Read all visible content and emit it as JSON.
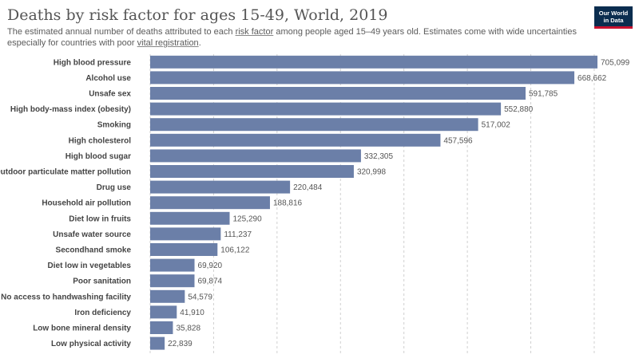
{
  "header": {
    "title": "Deaths by risk factor for ages 15-49, World, 2019",
    "subtitle_parts": [
      {
        "text": "The estimated annual number of deaths attributed to each ",
        "u": false
      },
      {
        "text": "risk factor",
        "u": true
      },
      {
        "text": " among people aged 15–49 years old. Estimates come with wide uncertainties especially for countries with poor ",
        "u": false
      },
      {
        "text": "vital registration",
        "u": true
      },
      {
        "text": ".",
        "u": false
      }
    ]
  },
  "logo": {
    "line1": "Our World",
    "line2": "in Data"
  },
  "colors": {
    "bar": "#6b7fa8",
    "grid": "#d0d0d0",
    "text": "#444444"
  },
  "chart_data": {
    "type": "bar",
    "orientation": "horizontal",
    "title": "Deaths by risk factor for ages 15-49, World, 2019",
    "xlim": [
      0,
      705099
    ],
    "gridlines_at": [
      0,
      100000,
      200000,
      300000,
      400000,
      500000,
      600000,
      700000
    ],
    "grid": "vertical dashed",
    "categories": [
      "High blood pressure",
      "Alcohol use",
      "Unsafe sex",
      "High body-mass index (obesity)",
      "Smoking",
      "High cholesterol",
      "High blood sugar",
      "Outdoor particulate matter pollution",
      "Drug use",
      "Household air pollution",
      "Diet low in fruits",
      "Unsafe water source",
      "Secondhand smoke",
      "Diet low in vegetables",
      "Poor sanitation",
      "No access to handwashing facility",
      "Iron deficiency",
      "Low bone mineral density",
      "Low physical activity"
    ],
    "values": [
      705099,
      668662,
      591785,
      552880,
      517002,
      457596,
      332305,
      320998,
      220484,
      188816,
      125290,
      111237,
      106122,
      69920,
      69874,
      54579,
      41910,
      35828,
      22839
    ],
    "value_labels": [
      "705,099",
      "668,662",
      "591,785",
      "552,880",
      "517,002",
      "457,596",
      "332,305",
      "320,998",
      "220,484",
      "188,816",
      "125,290",
      "111,237",
      "106,122",
      "69,920",
      "69,874",
      "54,579",
      "41,910",
      "35,828",
      "22,839"
    ]
  }
}
